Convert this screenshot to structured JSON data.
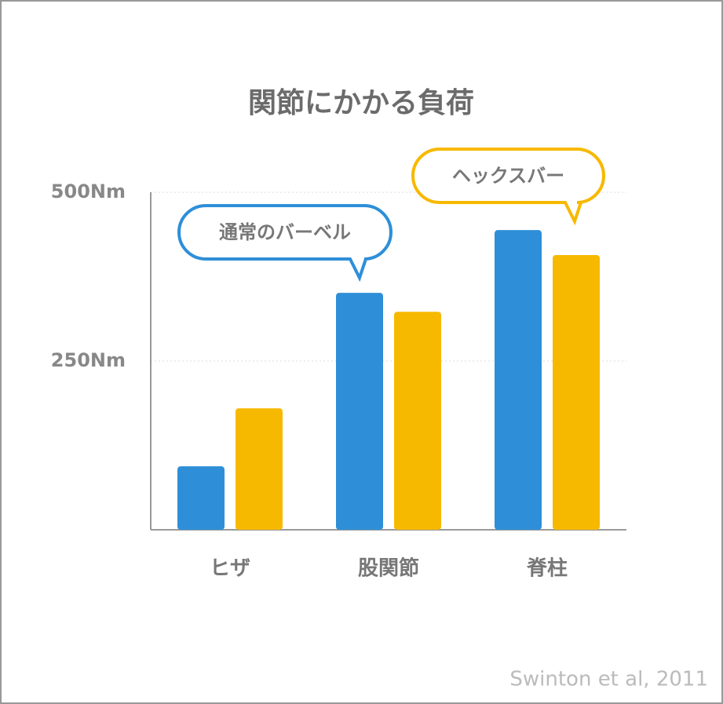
{
  "chart_data": {
    "type": "bar",
    "title": "関節にかかる負荷",
    "categories": [
      "ヒザ",
      "股関節",
      "脊柱"
    ],
    "series": [
      {
        "name": "通常のバーベル",
        "color": "#2e8fd8",
        "values": [
          94,
          351,
          444
        ]
      },
      {
        "name": "ヘックスバー",
        "color": "#f7b900",
        "values": [
          180,
          323,
          407
        ]
      }
    ],
    "ylim": [
      0,
      500
    ],
    "yticks": [
      {
        "value": 250,
        "label": "250Nm"
      },
      {
        "value": 500,
        "label": "500Nm"
      }
    ],
    "grid": true,
    "source": "Swinton et al, 2011"
  }
}
